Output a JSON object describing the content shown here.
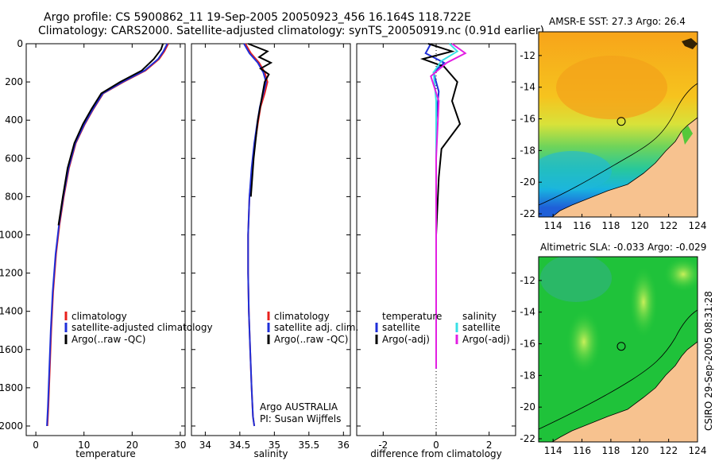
{
  "header": {
    "line1": "Argo profile: CS 5900862_11 19-Sep-2005 20050923_456 16.164S 118.722E",
    "line2": "Climatology: CARS2000. Satellite-adjusted climatology: synTS_20050919.nc (0.91d earlier)"
  },
  "colors": {
    "climatology": "#e8201c",
    "satellite": "#1f2fd8",
    "argo": "#000000",
    "sal_satellite": "#39e0e6",
    "sal_argo": "#e21fe2",
    "land": "#f7c28f"
  },
  "chart_data": [
    {
      "type": "line",
      "name": "temperature-panel",
      "xlabel": "temperature",
      "ylabel": "",
      "xlim": [
        -2,
        31
      ],
      "ylim": [
        2050,
        0
      ],
      "xticks": [
        0,
        10,
        20,
        30
      ],
      "xtick_labels": [
        "0",
        "10",
        "20",
        "30"
      ],
      "yticks": [
        0,
        200,
        400,
        600,
        800,
        1000,
        1200,
        1400,
        1600,
        1800,
        2000
      ],
      "ytick_labels": [
        "0",
        "200",
        "400",
        "600",
        "800",
        "1000",
        "1200",
        "1400",
        "1600",
        "1800",
        "2000"
      ],
      "legend": [
        "climatology",
        "satellite-adjusted climatology",
        "Argo(..raw -QC)"
      ],
      "series": [
        {
          "name": "climatology",
          "color_key": "climatology",
          "x": [
            27.5,
            26.7,
            25.6,
            22.8,
            18.2,
            14.0,
            12.0,
            10.2,
            8.3,
            6.9,
            5.8,
            4.9,
            4.2,
            3.6,
            3.2,
            2.9,
            2.6,
            2.4
          ],
          "y": [
            0,
            40,
            80,
            140,
            200,
            260,
            340,
            420,
            520,
            650,
            800,
            950,
            1100,
            1300,
            1500,
            1700,
            1900,
            2000
          ]
        },
        {
          "name": "satellite-adjusted climatology",
          "color_key": "satellite",
          "x": [
            27.3,
            26.5,
            25.4,
            22.6,
            18.0,
            13.9,
            11.9,
            10.1,
            8.2,
            6.8,
            5.7,
            4.8,
            4.1,
            3.5,
            3.1,
            2.8,
            2.5,
            2.3
          ],
          "y": [
            0,
            40,
            80,
            140,
            200,
            260,
            340,
            420,
            520,
            650,
            800,
            950,
            1100,
            1300,
            1500,
            1700,
            1900,
            2000
          ]
        },
        {
          "name": "Argo(..raw -QC)",
          "color_key": "argo",
          "x": [
            26.4,
            26.0,
            24.5,
            22.0,
            17.5,
            13.6,
            11.6,
            9.8,
            8.0,
            6.6,
            5.6,
            4.7
          ],
          "y": [
            0,
            30,
            80,
            140,
            200,
            260,
            340,
            420,
            520,
            650,
            800,
            950
          ]
        }
      ]
    },
    {
      "type": "line",
      "name": "salinity-panel",
      "xlabel": "salinity",
      "xlim": [
        33.8,
        36.1
      ],
      "ylim": [
        2050,
        0
      ],
      "xticks": [
        34,
        34.5,
        35,
        35.5,
        36
      ],
      "xtick_labels": [
        "34",
        "34.5",
        "35",
        "35.5",
        "36"
      ],
      "legend": [
        "climatology",
        "satellite adj. clim.",
        "Argo(..raw -QC)"
      ],
      "annotation": [
        "Argo AUSTRALIA",
        "PI: Susan Wijffels"
      ],
      "series": [
        {
          "name": "climatology",
          "color_key": "climatology",
          "x": [
            34.58,
            34.66,
            34.78,
            34.86,
            34.9,
            34.86,
            34.8,
            34.76,
            34.72,
            34.68,
            34.64,
            34.62,
            34.62,
            34.63,
            34.65,
            34.67,
            34.69,
            34.71
          ],
          "y": [
            0,
            50,
            100,
            150,
            200,
            260,
            330,
            420,
            520,
            650,
            800,
            1000,
            1200,
            1400,
            1600,
            1800,
            1950,
            2000
          ]
        },
        {
          "name": "satellite adj. clim.",
          "color_key": "satellite",
          "x": [
            34.56,
            34.64,
            34.76,
            34.84,
            34.88,
            34.84,
            34.79,
            34.75,
            34.71,
            34.67,
            34.64,
            34.62,
            34.62,
            34.63,
            34.65,
            34.67,
            34.69,
            34.71
          ],
          "y": [
            0,
            50,
            100,
            150,
            200,
            260,
            330,
            420,
            520,
            650,
            800,
            1000,
            1200,
            1400,
            1600,
            1800,
            1950,
            2000
          ]
        },
        {
          "name": "Argo(..raw -QC)",
          "color_key": "argo",
          "x": [
            34.62,
            34.9,
            34.78,
            34.95,
            34.8,
            34.92,
            34.86,
            34.82,
            34.76,
            34.7,
            34.66
          ],
          "y": [
            0,
            40,
            70,
            100,
            130,
            160,
            200,
            280,
            400,
            600,
            800
          ]
        }
      ]
    },
    {
      "type": "line",
      "name": "difference-panel",
      "xlabel": "difference from climatology",
      "xlim": [
        -3,
        3
      ],
      "ylim": [
        2050,
        0
      ],
      "xticks": [
        -2,
        0,
        2
      ],
      "xtick_labels": [
        "-2",
        "0",
        "2"
      ],
      "legend_temperature": [
        "temperature",
        "satellite",
        "Argo(-adj)"
      ],
      "legend_salinity": [
        "salinity",
        "satellite",
        "Argo(-adj)"
      ],
      "series": [
        {
          "name": "temperature satellite",
          "color_key": "satellite",
          "x": [
            -0.2,
            -0.4,
            0.3,
            -0.1,
            0.1,
            0.0,
            0.0,
            0.0,
            0.0
          ],
          "y": [
            0,
            50,
            100,
            150,
            250,
            400,
            700,
            1000,
            1700
          ]
        },
        {
          "name": "temperature Argo(-adj)",
          "color_key": "argo",
          "x": [
            -0.3,
            0.6,
            -0.5,
            0.3,
            0.8,
            0.6,
            0.9,
            0.2,
            0.1,
            0.0,
            0.0
          ],
          "y": [
            0,
            40,
            80,
            120,
            200,
            300,
            420,
            550,
            700,
            1000,
            1700
          ]
        },
        {
          "name": "salinity satellite",
          "color_key": "sal_satellite",
          "x": [
            0.5,
            0.8,
            0.2,
            -0.1,
            0.0,
            0.0,
            0.0,
            0.0
          ],
          "y": [
            0,
            40,
            90,
            150,
            300,
            600,
            1000,
            1700
          ]
        },
        {
          "name": "salinity Argo(-adj)",
          "color_key": "sal_argo",
          "x": [
            0.6,
            1.1,
            0.4,
            -0.2,
            0.1,
            0.0,
            0.0,
            0.0
          ],
          "y": [
            0,
            50,
            100,
            170,
            300,
            600,
            1000,
            1700
          ]
        }
      ]
    },
    {
      "type": "heatmap",
      "name": "sst-map",
      "title": "AMSR-E SST: 27.3  Argo: 26.4",
      "xlim": [
        113,
        124
      ],
      "ylim": [
        -22.2,
        -10.5
      ],
      "xticks": [
        114,
        116,
        118,
        120,
        122,
        124
      ],
      "xtick_labels": [
        "114",
        "116",
        "118",
        "120",
        "122",
        "124"
      ],
      "yticks": [
        -12,
        -14,
        -16,
        -18,
        -20,
        -22
      ],
      "ytick_labels": [
        "-12",
        "-14",
        "-16",
        "-18",
        "-20",
        "-22"
      ],
      "marker": {
        "lon": 118.72,
        "lat": -16.16
      }
    },
    {
      "type": "heatmap",
      "name": "sla-map",
      "title": "Altimetric SLA: -0.033  Argo: -0.029",
      "xlim": [
        113,
        124
      ],
      "ylim": [
        -22.2,
        -10.5
      ],
      "xticks": [
        114,
        116,
        118,
        120,
        122,
        124
      ],
      "xtick_labels": [
        "114",
        "116",
        "118",
        "120",
        "122",
        "124"
      ],
      "yticks": [
        -12,
        -14,
        -16,
        -18,
        -20,
        -22
      ],
      "ytick_labels": [
        "-12",
        "-14",
        "-16",
        "-18",
        "-20",
        "-22"
      ],
      "marker": {
        "lon": 118.72,
        "lat": -16.16
      }
    }
  ],
  "footer": {
    "stamp": "CSIRO 29-Sep-2005 08:31:28"
  }
}
